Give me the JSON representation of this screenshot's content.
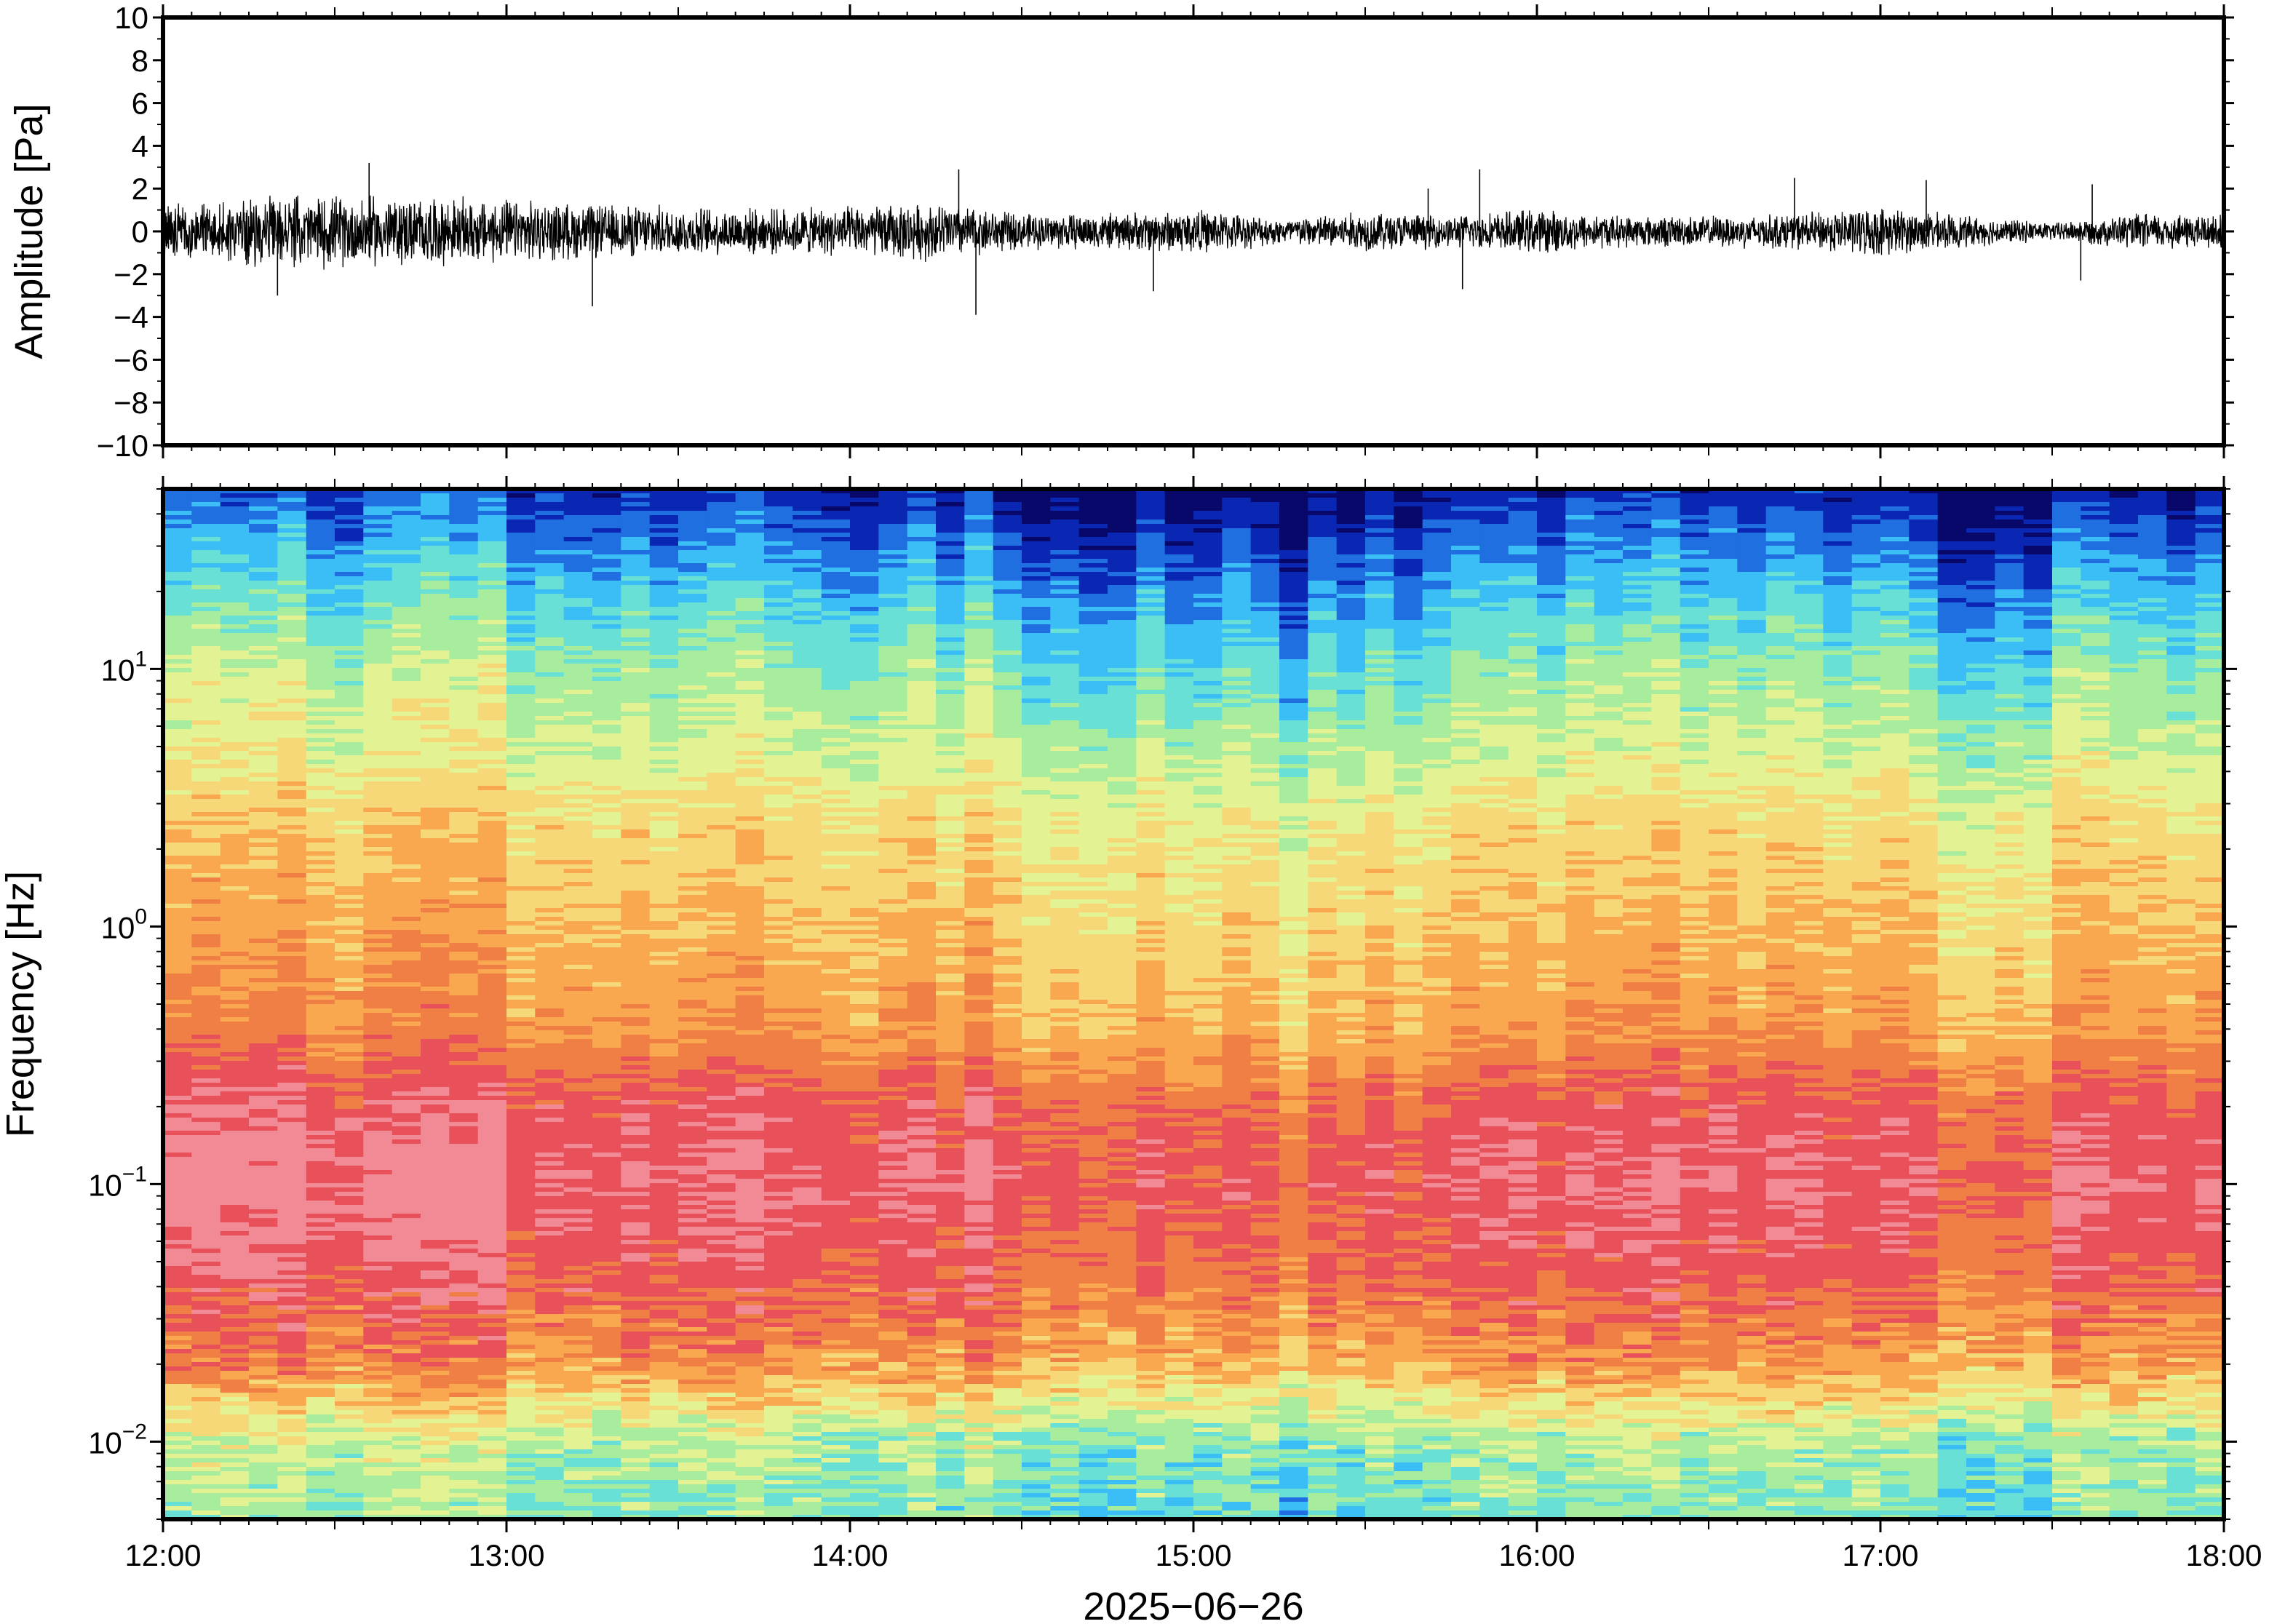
{
  "chart_data": [
    {
      "type": "line",
      "name": "waveform",
      "ylabel": "Amplitude [Pa]",
      "ylim": [
        -10,
        10
      ],
      "yticks": [
        10,
        8,
        6,
        4,
        2,
        0,
        -2,
        -4,
        -6,
        -8,
        -10
      ],
      "ytick_labels": [
        "10",
        "8",
        "6",
        "4",
        "2",
        "0",
        "−2",
        "−4",
        "−6",
        "−8",
        "−10"
      ],
      "xlim": [
        "12:00",
        "18:00"
      ],
      "grid": false,
      "envelope": {
        "times_h": [
          12.0,
          12.25,
          12.5,
          12.75,
          13.0,
          13.25,
          13.5,
          13.75,
          14.0,
          14.25,
          14.5,
          14.75,
          15.0,
          15.25,
          15.5,
          15.75,
          16.0,
          16.25,
          16.5,
          16.75,
          17.0,
          17.25,
          17.5,
          17.75,
          18.0
        ],
        "amplitude_pa": [
          1.3,
          1.5,
          1.6,
          1.5,
          1.4,
          1.2,
          1.1,
          1.0,
          1.1,
          1.3,
          0.8,
          0.8,
          1.0,
          0.6,
          0.9,
          0.7,
          1.0,
          0.7,
          0.7,
          0.8,
          1.1,
          0.7,
          0.4,
          0.8,
          0.8
        ]
      },
      "spikes": [
        {
          "t": "12:36",
          "value": 3.2
        },
        {
          "t": "12:20",
          "value": -3.0
        },
        {
          "t": "13:15",
          "value": -3.5
        },
        {
          "t": "14:19",
          "value": 2.9
        },
        {
          "t": "14:22",
          "value": -3.9
        },
        {
          "t": "14:53",
          "value": -2.8
        },
        {
          "t": "15:41",
          "value": 2.0
        },
        {
          "t": "15:50",
          "value": 2.9
        },
        {
          "t": "15:47",
          "value": -2.7
        },
        {
          "t": "16:45",
          "value": 2.5
        },
        {
          "t": "17:08",
          "value": 2.4
        },
        {
          "t": "17:37",
          "value": 2.2
        },
        {
          "t": "17:35",
          "value": -2.3
        }
      ]
    },
    {
      "type": "heatmap",
      "name": "spectrogram",
      "ylabel": "Frequency [Hz]",
      "yscale": "log",
      "ylim": [
        0.005,
        50
      ],
      "ytick_labels": [
        {
          "value": 10,
          "base": "10",
          "exp": "1"
        },
        {
          "value": 1,
          "base": "10",
          "exp": "0"
        },
        {
          "value": 0.1,
          "base": "10",
          "exp": "−1"
        },
        {
          "value": 0.01,
          "base": "10",
          "exp": "−2"
        }
      ],
      "xlabel": "2025−06−26",
      "xticks": [
        "12:00",
        "13:00",
        "14:00",
        "15:00",
        "16:00",
        "17:00",
        "18:00"
      ],
      "xlim": [
        "12:00",
        "18:00"
      ],
      "colormap": [
        "#08086a",
        "#0a27b3",
        "#1f6fe0",
        "#3bbdf5",
        "#68e0d6",
        "#a8ec9e",
        "#e3f393",
        "#f7d878",
        "#f9a84f",
        "#f07f45",
        "#e8505a",
        "#f28a96"
      ],
      "power_profile_by_frequency": {
        "log10_freq": [
          -2.3,
          -2.0,
          -1.7,
          -1.4,
          -1.0,
          -0.7,
          -0.4,
          0.0,
          0.4,
          0.7,
          1.0,
          1.3,
          1.7
        ],
        "level_0_to_1": [
          0.42,
          0.48,
          0.74,
          0.86,
          0.92,
          0.88,
          0.74,
          0.68,
          0.62,
          0.52,
          0.45,
          0.32,
          0.12
        ]
      }
    }
  ]
}
